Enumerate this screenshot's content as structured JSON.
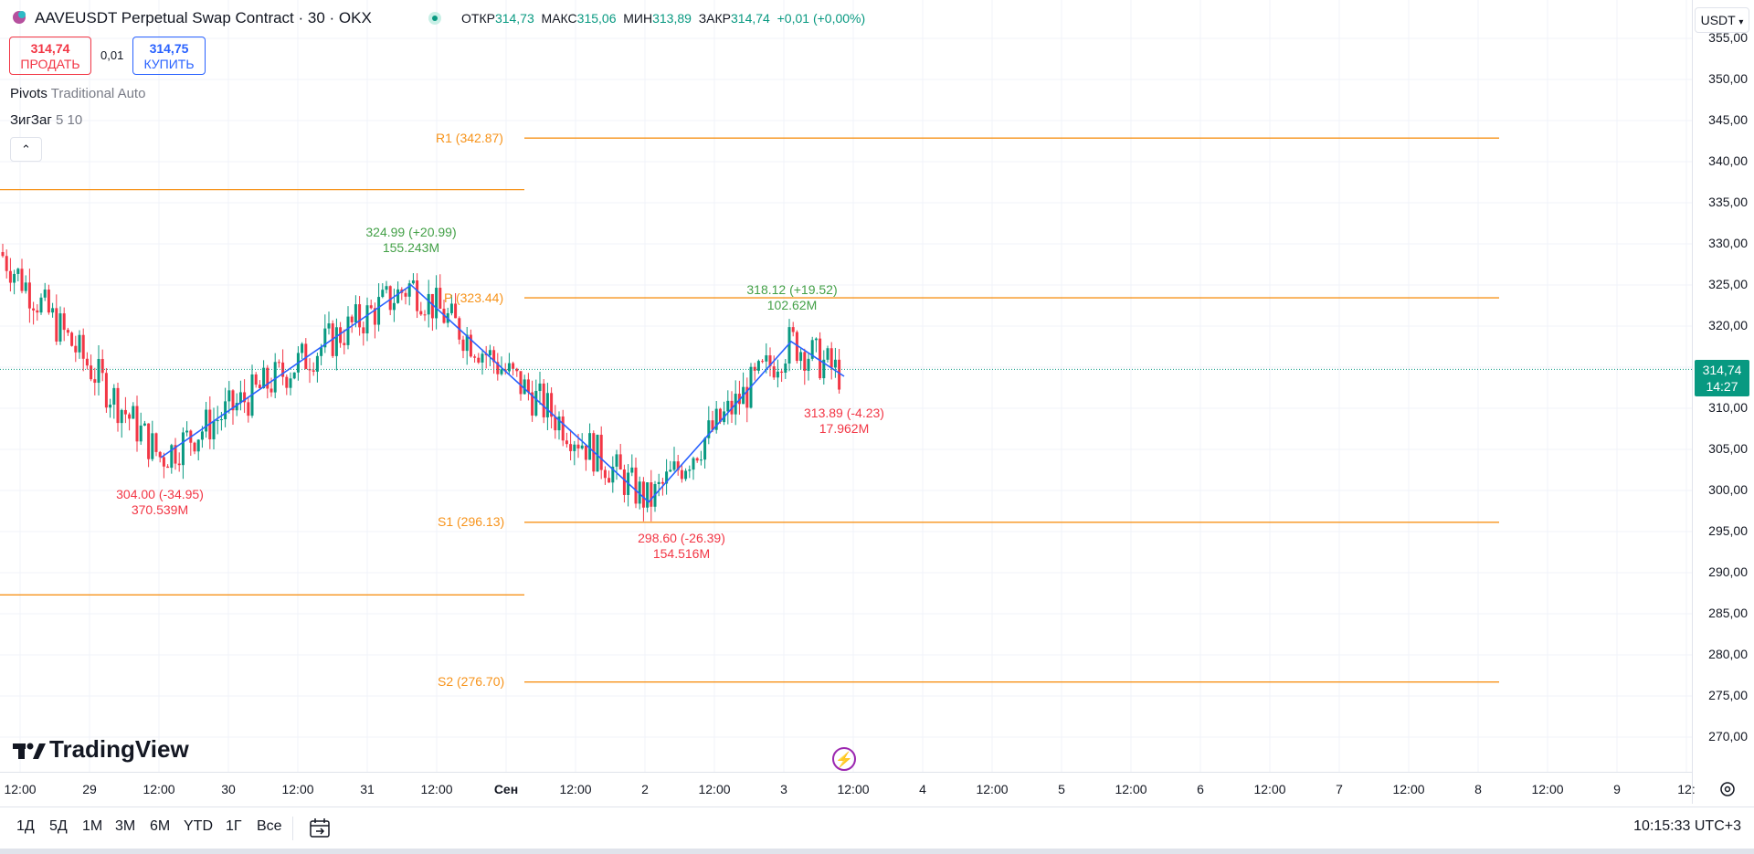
{
  "header": {
    "title": "AAVEUSDT Perpetual Swap Contract · 30 · OKX",
    "ohlc": [
      {
        "key": "ОТКР",
        "value": "314,73"
      },
      {
        "key": "МАКС",
        "value": "315,06"
      },
      {
        "key": "МИН",
        "value": "313,89"
      },
      {
        "key": "ЗАКР",
        "value": "314,74"
      }
    ],
    "change": "+0,01 (+0,00%)"
  },
  "trade": {
    "sell_price": "314,74",
    "sell_label": "ПРОДАТЬ",
    "spread": "0,01",
    "buy_price": "314,75",
    "buy_label": "КУПИТЬ"
  },
  "indicators": {
    "pivots_name": "Pivots",
    "pivots_params": "Traditional Auto",
    "zigzag_name": "ЗигЗаг",
    "zigzag_params": "5 10"
  },
  "currency": "USDT",
  "price_axis": {
    "ticks": [
      "355,00",
      "350,00",
      "345,00",
      "340,00",
      "335,00",
      "330,00",
      "325,00",
      "320,00",
      "315,00",
      "310,00",
      "305,00",
      "300,00",
      "295,00",
      "290,00",
      "285,00",
      "280,00",
      "275,00",
      "270,00"
    ],
    "last_price": "314,74",
    "countdown": "14:27"
  },
  "time_axis": [
    "12:00",
    "29",
    "12:00",
    "30",
    "12:00",
    "31",
    "12:00",
    "Сен",
    "12:00",
    "2",
    "12:00",
    "3",
    "12:00",
    "4",
    "12:00",
    "5",
    "12:00",
    "6",
    "12:00",
    "7",
    "12:00",
    "8",
    "12:00",
    "9",
    "12:"
  ],
  "pivots": {
    "r1": "R1 (342.87)",
    "p": "P (323.44)",
    "s1": "S1 (296.13)",
    "s2": "S2 (276.70)"
  },
  "zigzag_labels": [
    {
      "price": "304.00 (-34.95)",
      "vol": "370.539M",
      "dir": "down"
    },
    {
      "price": "324.99 (+20.99)",
      "vol": "155.243M",
      "dir": "up"
    },
    {
      "price": "298.60 (-26.39)",
      "vol": "154.516M",
      "dir": "down"
    },
    {
      "price": "318.12 (+19.52)",
      "vol": "102.62M",
      "dir": "up"
    },
    {
      "price": "313.89 (-4.23)",
      "vol": "17.962M",
      "dir": "down"
    }
  ],
  "ranges": [
    "1Д",
    "5Д",
    "1М",
    "3М",
    "6М",
    "YTD",
    "1Г",
    "Все"
  ],
  "clock": "10:15:33 UTC+3",
  "logo": "TradingView",
  "colors": {
    "up": "#089981",
    "down": "#f23645",
    "pivot": "#f7931a",
    "zigzag": "#2962ff"
  }
}
